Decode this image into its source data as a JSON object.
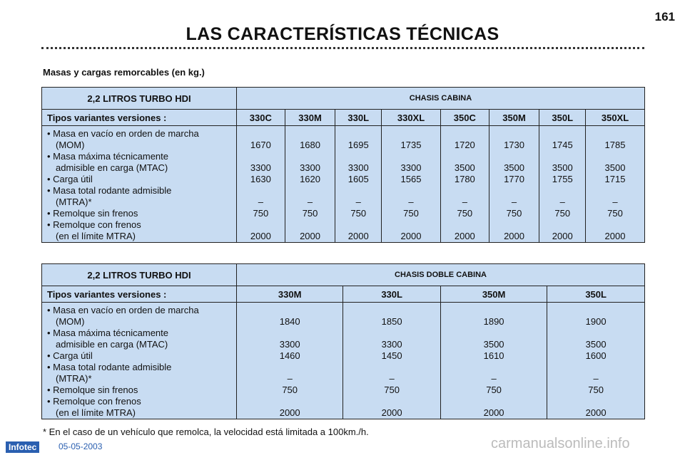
{
  "page_number": "161",
  "title": "LAS CARACTERÍSTICAS TÉCNICAS",
  "subtitle": "Masas y cargas remorcables (en kg.)",
  "row_labels": [
    [
      "• Masa en vacío en orden de marcha",
      "(MOM)"
    ],
    [
      "• Masa máxima técnicamente",
      "admisible en carga (MTAC)"
    ],
    [
      "• Carga útil"
    ],
    [
      "• Masa total rodante admisible",
      "(MTRA)*"
    ],
    [
      "• Remolque sin frenos"
    ],
    [
      "• Remolque con frenos",
      "(en el límite MTRA)"
    ]
  ],
  "table1": {
    "engine": "2,2 LITROS TURBO HDI",
    "chasis": "CHASIS CABINA",
    "tipos": "Tipos variantes versiones :",
    "columns": [
      {
        "name": "330C",
        "values": [
          "1670",
          "3300",
          "1630",
          "–",
          "750",
          "2000"
        ]
      },
      {
        "name": "330M",
        "values": [
          "1680",
          "3300",
          "1620",
          "–",
          "750",
          "2000"
        ]
      },
      {
        "name": "330L",
        "values": [
          "1695",
          "3300",
          "1605",
          "–",
          "750",
          "2000"
        ]
      },
      {
        "name": "330XL",
        "values": [
          "1735",
          "3300",
          "1565",
          "–",
          "750",
          "2000"
        ]
      },
      {
        "name": "350C",
        "values": [
          "1720",
          "3500",
          "1780",
          "–",
          "750",
          "2000"
        ]
      },
      {
        "name": "350M",
        "values": [
          "1730",
          "3500",
          "1770",
          "–",
          "750",
          "2000"
        ]
      },
      {
        "name": "350L",
        "values": [
          "1745",
          "3500",
          "1755",
          "–",
          "750",
          "2000"
        ]
      },
      {
        "name": "350XL",
        "values": [
          "1785",
          "3500",
          "1715",
          "–",
          "750",
          "2000"
        ]
      }
    ]
  },
  "table2": {
    "engine": "2,2 LITROS TURBO HDI",
    "chasis": "CHASIS DOBLE CABINA",
    "tipos": "Tipos variantes versiones :",
    "columns": [
      {
        "name": "330M",
        "values": [
          "1840",
          "3300",
          "1460",
          "–",
          "750",
          "2000"
        ]
      },
      {
        "name": "330L",
        "values": [
          "1850",
          "3300",
          "1450",
          "–",
          "750",
          "2000"
        ]
      },
      {
        "name": "350M",
        "values": [
          "1890",
          "3500",
          "1610",
          "–",
          "750",
          "2000"
        ]
      },
      {
        "name": "350L",
        "values": [
          "1900",
          "3500",
          "1600",
          "–",
          "750",
          "2000"
        ]
      }
    ]
  },
  "footnote": "* En el caso de un vehículo que remolca, la velocidad está limitada a 100km./h.",
  "footer": {
    "brand": "Infotec",
    "date": "05-05-2003",
    "watermark": "carmanualsonline.info"
  }
}
